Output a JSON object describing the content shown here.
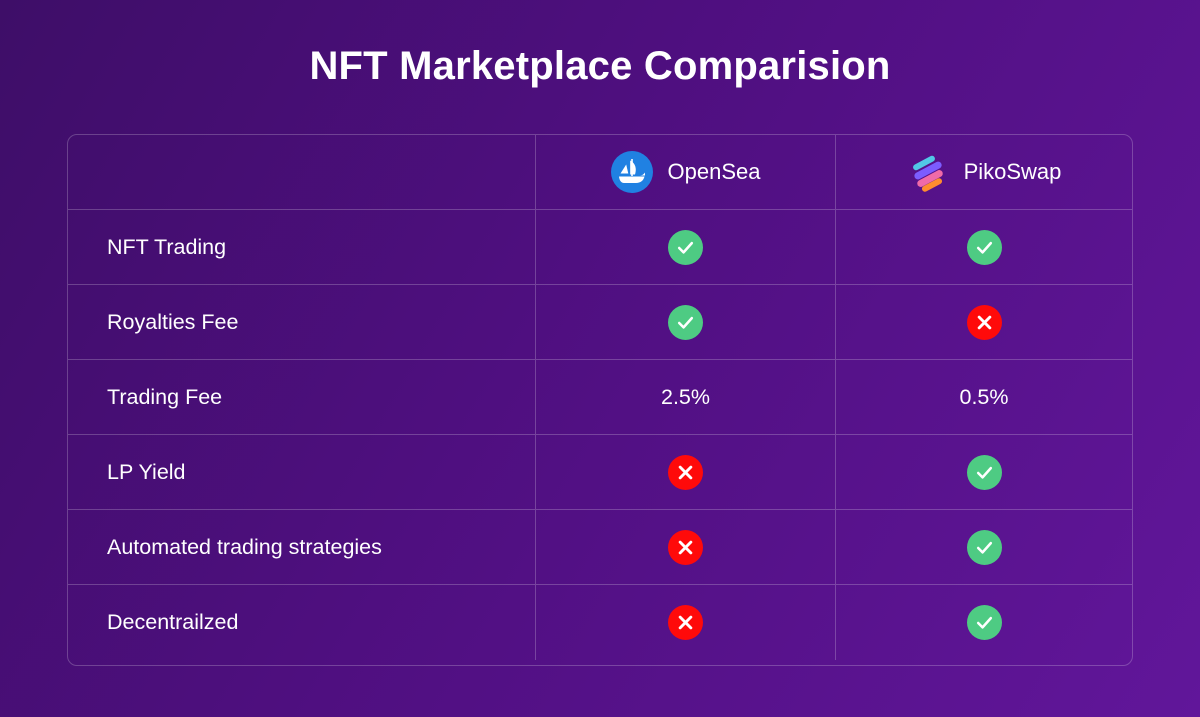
{
  "title": "NFT Marketplace Comparision",
  "columns": [
    {
      "name": "OpenSea",
      "icon": "opensea-logo-icon",
      "color": "#2081e2"
    },
    {
      "name": "PikoSwap",
      "icon": "pikoswap-logo-icon"
    }
  ],
  "colors": {
    "check": "#4ecb83",
    "cross": "#ff0a0a"
  },
  "rows": [
    {
      "feature": "NFT Trading",
      "opensea": "check-icon",
      "pikoswap": "check-icon"
    },
    {
      "feature": "Royalties Fee",
      "opensea": "check-icon",
      "pikoswap": "cross-icon"
    },
    {
      "feature": "Trading Fee",
      "opensea": "2.5%",
      "pikoswap": "0.5%"
    },
    {
      "feature": "LP Yield",
      "opensea": "cross-icon",
      "pikoswap": "check-icon"
    },
    {
      "feature": "Automated trading strategies",
      "opensea": "cross-icon",
      "pikoswap": "check-icon"
    },
    {
      "feature": "Decentrailzed",
      "opensea": "cross-icon",
      "pikoswap": "check-icon"
    }
  ]
}
